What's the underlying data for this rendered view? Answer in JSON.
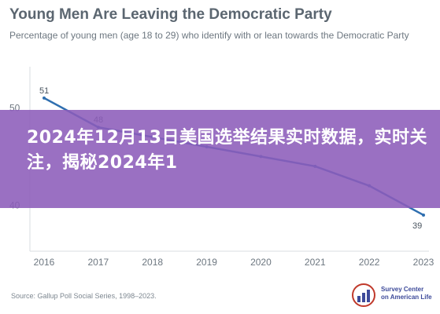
{
  "chart_data": {
    "type": "line",
    "title": "Young Men Are Leaving the Democratic Party",
    "subtitle": "Percentage of young men (age 18 to 29) who identify with or lean towards the Democratic Party",
    "x": [
      2016,
      2017,
      2018,
      2019,
      2020,
      2021,
      2022,
      2023
    ],
    "series": [
      {
        "values": [
          51,
          48,
          47,
          46,
          45,
          44,
          42,
          39
        ]
      }
    ],
    "visible_point_labels": [
      {
        "x": 2016,
        "label": "51"
      },
      {
        "x": 2017,
        "label": "48"
      },
      {
        "x": 2023,
        "label": "39"
      }
    ],
    "y_ticks": [
      40,
      50
    ],
    "xlim": [
      2016,
      2023
    ],
    "ylim": [
      36.5,
      53
    ],
    "grid": false,
    "line_color": "#2f6fb0"
  },
  "overlay": {
    "text": "2024年12月13日美国选举结果实时数据，实时关注，揭秘2024年1"
  },
  "source": "Source: Gallup Poll Social Series, 1998–2023.",
  "logo": {
    "text": "Survey Center\non American Life"
  }
}
